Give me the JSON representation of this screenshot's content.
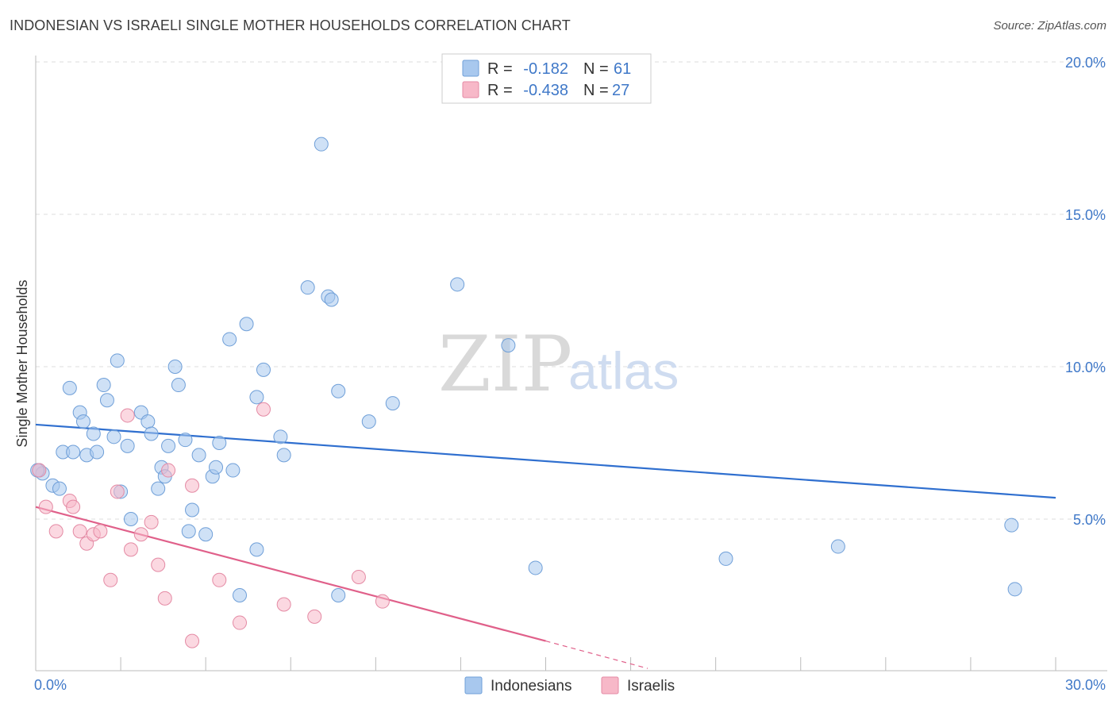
{
  "title": "INDONESIAN VS ISRAELI SINGLE MOTHER HOUSEHOLDS CORRELATION CHART",
  "source": "Source: ZipAtlas.com",
  "watermark": {
    "zip": "ZIP",
    "atlas": "atlas"
  },
  "legend": {
    "rows": [
      {
        "r_label": "R =",
        "r_value": "-0.182",
        "n_label": "N =",
        "n_value": "61",
        "color": "#a8c8ee"
      },
      {
        "r_label": "R =",
        "r_value": "-0.438",
        "n_label": "N =",
        "n_value": "27",
        "color": "#f7b8c8"
      }
    ]
  },
  "bottom_legend": [
    {
      "label": "Indonesians",
      "color": "#a8c8ee"
    },
    {
      "label": "Israelis",
      "color": "#f7b8c8"
    }
  ],
  "chart_data": {
    "type": "scatter",
    "title": "INDONESIAN VS ISRAELI SINGLE MOTHER HOUSEHOLDS CORRELATION CHART",
    "xlabel": "",
    "ylabel": "Single Mother Households",
    "xlim": [
      0,
      30
    ],
    "ylim": [
      0,
      20.5
    ],
    "x_tick_labels": [
      "0.0%",
      "30.0%"
    ],
    "y_ticks": [
      5,
      10,
      15,
      20
    ],
    "y_tick_labels": [
      "5.0%",
      "10.0%",
      "15.0%",
      "20.0%"
    ],
    "grid": true,
    "legend_position": "top-center",
    "series": [
      {
        "name": "Indonesians",
        "color": "#a8c8ee",
        "stroke": "#6f9fd8",
        "line_color": "#2f6fcf",
        "trend": {
          "x": [
            0,
            30
          ],
          "y": [
            8.1,
            5.7
          ]
        },
        "points": [
          [
            0.1,
            6.6
          ],
          [
            0.2,
            6.5
          ],
          [
            0.5,
            6.1
          ],
          [
            0.7,
            6.0
          ],
          [
            0.8,
            7.2
          ],
          [
            1.0,
            9.3
          ],
          [
            1.1,
            7.2
          ],
          [
            1.3,
            8.5
          ],
          [
            1.4,
            8.2
          ],
          [
            1.5,
            7.1
          ],
          [
            1.7,
            7.8
          ],
          [
            1.8,
            7.2
          ],
          [
            2.0,
            9.4
          ],
          [
            2.1,
            8.9
          ],
          [
            2.3,
            7.7
          ],
          [
            2.4,
            10.2
          ],
          [
            2.5,
            5.9
          ],
          [
            2.7,
            7.4
          ],
          [
            2.8,
            5.0
          ],
          [
            3.1,
            8.5
          ],
          [
            3.3,
            8.2
          ],
          [
            3.4,
            7.8
          ],
          [
            3.6,
            6.0
          ],
          [
            3.7,
            6.7
          ],
          [
            3.8,
            6.4
          ],
          [
            3.9,
            7.4
          ],
          [
            4.1,
            10.0
          ],
          [
            4.2,
            9.4
          ],
          [
            4.4,
            7.6
          ],
          [
            4.5,
            4.6
          ],
          [
            4.6,
            5.3
          ],
          [
            4.8,
            7.1
          ],
          [
            5.0,
            4.5
          ],
          [
            5.2,
            6.4
          ],
          [
            5.3,
            6.7
          ],
          [
            5.4,
            7.5
          ],
          [
            5.7,
            10.9
          ],
          [
            5.8,
            6.6
          ],
          [
            6.0,
            2.5
          ],
          [
            6.2,
            11.4
          ],
          [
            6.5,
            9.0
          ],
          [
            6.5,
            4.0
          ],
          [
            6.7,
            9.9
          ],
          [
            7.2,
            7.7
          ],
          [
            7.3,
            7.1
          ],
          [
            8.0,
            12.6
          ],
          [
            8.4,
            17.3
          ],
          [
            8.6,
            12.3
          ],
          [
            8.7,
            12.2
          ],
          [
            8.9,
            9.2
          ],
          [
            8.9,
            2.5
          ],
          [
            9.8,
            8.2
          ],
          [
            10.5,
            8.8
          ],
          [
            12.4,
            12.7
          ],
          [
            13.9,
            10.7
          ],
          [
            14.7,
            3.4
          ],
          [
            20.3,
            3.7
          ],
          [
            23.6,
            4.1
          ],
          [
            28.7,
            4.8
          ],
          [
            28.8,
            2.7
          ],
          [
            0.05,
            6.6
          ]
        ]
      },
      {
        "name": "Israelis",
        "color": "#f7b8c8",
        "stroke": "#e48aa4",
        "line_color": "#e0608a",
        "trend": {
          "x": [
            0,
            15
          ],
          "y": [
            5.4,
            1.0
          ]
        },
        "trend_dashed": {
          "x": [
            15,
            18
          ],
          "y": [
            1.0,
            0.1
          ]
        },
        "points": [
          [
            0.1,
            6.6
          ],
          [
            0.3,
            5.4
          ],
          [
            0.6,
            4.6
          ],
          [
            1.0,
            5.6
          ],
          [
            1.1,
            5.4
          ],
          [
            1.3,
            4.6
          ],
          [
            1.5,
            4.2
          ],
          [
            1.7,
            4.5
          ],
          [
            1.9,
            4.6
          ],
          [
            2.2,
            3.0
          ],
          [
            2.4,
            5.9
          ],
          [
            2.7,
            8.4
          ],
          [
            2.8,
            4.0
          ],
          [
            3.1,
            4.5
          ],
          [
            3.4,
            4.9
          ],
          [
            3.6,
            3.5
          ],
          [
            3.8,
            2.4
          ],
          [
            3.9,
            6.6
          ],
          [
            4.6,
            6.1
          ],
          [
            4.6,
            1.0
          ],
          [
            5.4,
            3.0
          ],
          [
            6.0,
            1.6
          ],
          [
            6.7,
            8.6
          ],
          [
            7.3,
            2.2
          ],
          [
            8.2,
            1.8
          ],
          [
            9.5,
            3.1
          ],
          [
            10.2,
            2.3
          ]
        ]
      }
    ]
  }
}
